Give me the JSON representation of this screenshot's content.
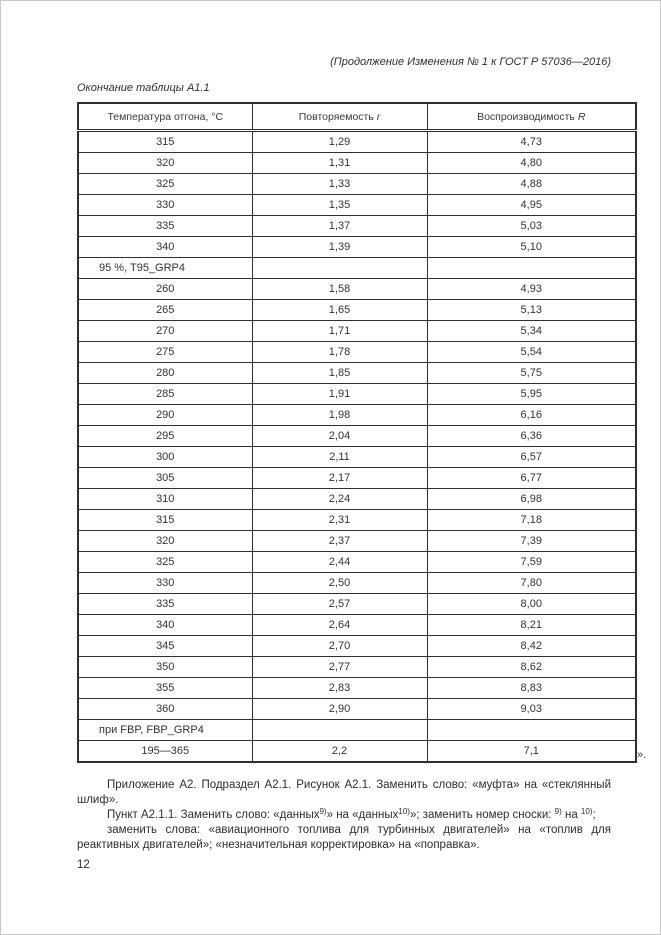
{
  "page": {
    "header_note": "(Продолжение Изменения № 1 к ГОСТ Р 57036—2016)",
    "table_caption": "Окончание таблицы А1.1",
    "closing_mark": "».",
    "page_number": "12"
  },
  "table": {
    "columns": [
      {
        "label": "Температура отгона, °С",
        "symbol": ""
      },
      {
        "label": "Повторяемость ",
        "symbol": "r"
      },
      {
        "label": "Воспроизводимость ",
        "symbol": "R"
      }
    ],
    "rows": [
      {
        "type": "data",
        "cells": [
          "315",
          "1,29",
          "4,73"
        ]
      },
      {
        "type": "data",
        "cells": [
          "320",
          "1,31",
          "4,80"
        ]
      },
      {
        "type": "data",
        "cells": [
          "325",
          "1,33",
          "4,88"
        ]
      },
      {
        "type": "data",
        "cells": [
          "330",
          "1,35",
          "4,95"
        ]
      },
      {
        "type": "data",
        "cells": [
          "335",
          "1,37",
          "5,03"
        ]
      },
      {
        "type": "data",
        "cells": [
          "340",
          "1,39",
          "5,10"
        ]
      },
      {
        "type": "section",
        "label": "95 %, T95_GRP4"
      },
      {
        "type": "data",
        "cells": [
          "260",
          "1,58",
          "4,93"
        ]
      },
      {
        "type": "data",
        "cells": [
          "265",
          "1,65",
          "5,13"
        ]
      },
      {
        "type": "data",
        "cells": [
          "270",
          "1,71",
          "5,34"
        ]
      },
      {
        "type": "data",
        "cells": [
          "275",
          "1,78",
          "5,54"
        ]
      },
      {
        "type": "data",
        "cells": [
          "280",
          "1,85",
          "5,75"
        ]
      },
      {
        "type": "data",
        "cells": [
          "285",
          "1,91",
          "5,95"
        ]
      },
      {
        "type": "data",
        "cells": [
          "290",
          "1,98",
          "6,16"
        ]
      },
      {
        "type": "data",
        "cells": [
          "295",
          "2,04",
          "6,36"
        ]
      },
      {
        "type": "data",
        "cells": [
          "300",
          "2,11",
          "6,57"
        ]
      },
      {
        "type": "data",
        "cells": [
          "305",
          "2,17",
          "6,77"
        ]
      },
      {
        "type": "data",
        "cells": [
          "310",
          "2,24",
          "6,98"
        ]
      },
      {
        "type": "data",
        "cells": [
          "315",
          "2,31",
          "7,18"
        ]
      },
      {
        "type": "data",
        "cells": [
          "320",
          "2,37",
          "7,39"
        ]
      },
      {
        "type": "data",
        "cells": [
          "325",
          "2,44",
          "7,59"
        ]
      },
      {
        "type": "data",
        "cells": [
          "330",
          "2,50",
          "7,80"
        ]
      },
      {
        "type": "data",
        "cells": [
          "335",
          "2,57",
          "8,00"
        ]
      },
      {
        "type": "data",
        "cells": [
          "340",
          "2,64",
          "8,21"
        ]
      },
      {
        "type": "data",
        "cells": [
          "345",
          "2,70",
          "8,42"
        ]
      },
      {
        "type": "data",
        "cells": [
          "350",
          "2,77",
          "8,62"
        ]
      },
      {
        "type": "data",
        "cells": [
          "355",
          "2,83",
          "8,83"
        ]
      },
      {
        "type": "data",
        "cells": [
          "360",
          "2,90",
          "9,03"
        ]
      },
      {
        "type": "section",
        "label": "при FBP, FBP_GRP4"
      },
      {
        "type": "data",
        "cells": [
          "195—365",
          "2,2",
          "7,1"
        ]
      }
    ]
  },
  "paragraphs": {
    "p1": "Приложение А2. Подраздел А2.1. Рисунок А2.1. Заменить слово: «муфта» на «стеклянный шлиф».",
    "p2": {
      "t1": "Пункт А2.1.1. Заменить слово: «данных",
      "sup1": "9)",
      "t2": "» на «данных",
      "sup2": "10)",
      "t3": "»; заменить номер сноски: ",
      "sup3": "9)",
      "t4": " на ",
      "sup4": "10)",
      "t5": ";"
    },
    "p3": "заменить слова: «авиационного топлива для турбинных двигателей» на «топлив для реактивных двигателей»; «незначительная корректировка» на «поправка»."
  }
}
